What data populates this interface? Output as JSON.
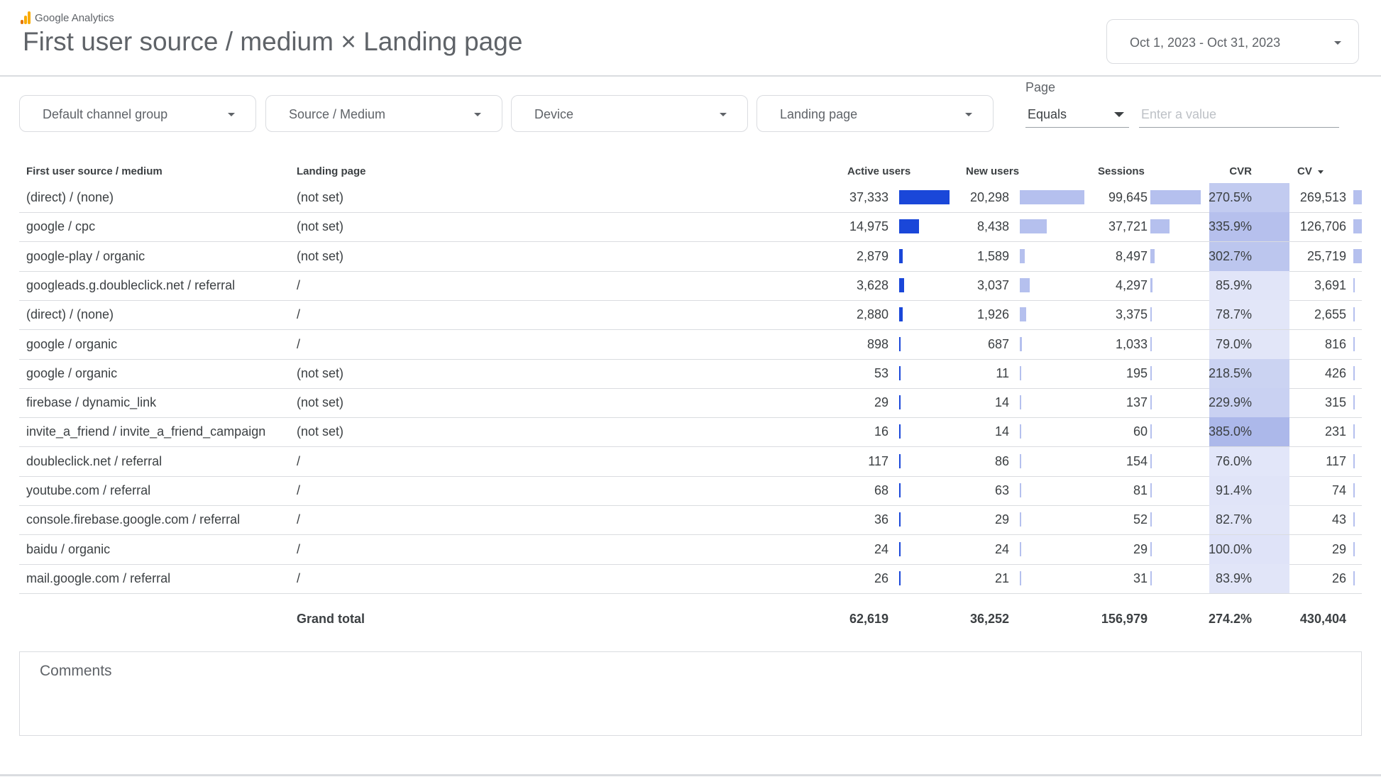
{
  "brand": {
    "name": "Google Analytics"
  },
  "page_title": "First user source / medium × Landing page",
  "date_range": {
    "label": "Oct 1, 2023 - Oct 31, 2023"
  },
  "filters": {
    "default_channel_group": "Default channel group",
    "source_medium": "Source / Medium",
    "device": "Device",
    "landing_page": "Landing page",
    "page": {
      "label": "Page",
      "operator": "Equals",
      "value_placeholder": "Enter a value",
      "value": ""
    }
  },
  "colors": {
    "bar_dark": "#1a47d9",
    "bar_light": "#b5c0ee"
  },
  "table": {
    "columns": {
      "source_medium": "First user source / medium",
      "landing_page": "Landing page",
      "active_users": "Active users",
      "new_users": "New users",
      "sessions": "Sessions",
      "cvr": "CVR",
      "cv": "CV"
    },
    "sorted_by": "CV",
    "rows": [
      {
        "source_medium": "(direct) / (none)",
        "landing_page": "(not set)",
        "active_users": "37,333",
        "new_users": "20,298",
        "sessions": "99,645",
        "cvr": "270.5%",
        "cv": "269,513"
      },
      {
        "source_medium": "google / cpc",
        "landing_page": "(not set)",
        "active_users": "14,975",
        "new_users": "8,438",
        "sessions": "37,721",
        "cvr": "335.9%",
        "cv": "126,706"
      },
      {
        "source_medium": "google-play / organic",
        "landing_page": "(not set)",
        "active_users": "2,879",
        "new_users": "1,589",
        "sessions": "8,497",
        "cvr": "302.7%",
        "cv": "25,719"
      },
      {
        "source_medium": "googleads.g.doubleclick.net / referral",
        "landing_page": "/",
        "active_users": "3,628",
        "new_users": "3,037",
        "sessions": "4,297",
        "cvr": "85.9%",
        "cv": "3,691"
      },
      {
        "source_medium": "(direct) / (none)",
        "landing_page": "/",
        "active_users": "2,880",
        "new_users": "1,926",
        "sessions": "3,375",
        "cvr": "78.7%",
        "cv": "2,655"
      },
      {
        "source_medium": "google / organic",
        "landing_page": "/",
        "active_users": "898",
        "new_users": "687",
        "sessions": "1,033",
        "cvr": "79.0%",
        "cv": "816"
      },
      {
        "source_medium": "google / organic",
        "landing_page": "(not set)",
        "active_users": "53",
        "new_users": "11",
        "sessions": "195",
        "cvr": "218.5%",
        "cv": "426"
      },
      {
        "source_medium": "firebase / dynamic_link",
        "landing_page": "(not set)",
        "active_users": "29",
        "new_users": "14",
        "sessions": "137",
        "cvr": "229.9%",
        "cv": "315"
      },
      {
        "source_medium": "invite_a_friend / invite_a_friend_campaign",
        "landing_page": "(not set)",
        "active_users": "16",
        "new_users": "14",
        "sessions": "60",
        "cvr": "385.0%",
        "cv": "231"
      },
      {
        "source_medium": "doubleclick.net / referral",
        "landing_page": "/",
        "active_users": "117",
        "new_users": "86",
        "sessions": "154",
        "cvr": "76.0%",
        "cv": "117"
      },
      {
        "source_medium": "youtube.com / referral",
        "landing_page": "/",
        "active_users": "68",
        "new_users": "63",
        "sessions": "81",
        "cvr": "91.4%",
        "cv": "74"
      },
      {
        "source_medium": "console.firebase.google.com / referral",
        "landing_page": "/",
        "active_users": "36",
        "new_users": "29",
        "sessions": "52",
        "cvr": "82.7%",
        "cv": "43"
      },
      {
        "source_medium": "baidu / organic",
        "landing_page": "/",
        "active_users": "24",
        "new_users": "24",
        "sessions": "29",
        "cvr": "100.0%",
        "cv": "29"
      },
      {
        "source_medium": "mail.google.com / referral",
        "landing_page": "/",
        "active_users": "26",
        "new_users": "21",
        "sessions": "31",
        "cvr": "83.9%",
        "cv": "26"
      }
    ],
    "grand_total": {
      "label": "Grand total",
      "active_users": "62,619",
      "new_users": "36,252",
      "sessions": "156,979",
      "cvr": "274.2%",
      "cv": "430,404"
    }
  },
  "comments": {
    "label": "Comments"
  }
}
